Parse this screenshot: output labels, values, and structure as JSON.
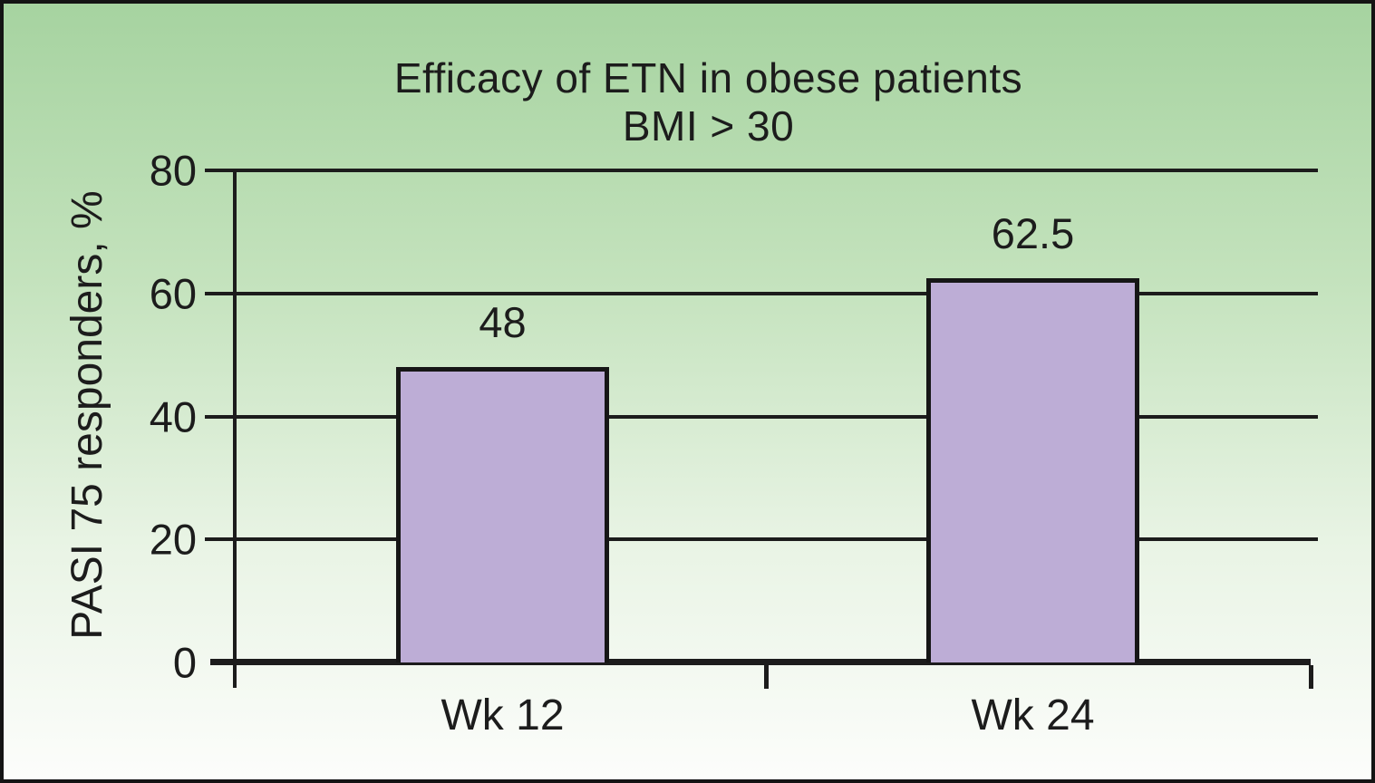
{
  "chart_data": {
    "type": "bar",
    "title": "Efficacy of ETN in obese patients",
    "subtitle": "BMI > 30",
    "ylabel": "PASI 75 responders, %",
    "xlabel": "",
    "categories": [
      "Wk 12",
      "Wk 24"
    ],
    "values": [
      48,
      62.5
    ],
    "value_labels": [
      "48",
      "62.5"
    ],
    "yticks": [
      0,
      20,
      40,
      60,
      80
    ],
    "ylim": [
      0,
      80
    ],
    "grid": "horizontal",
    "legend": "none",
    "colors": {
      "bar_fill": "#bdadd6",
      "bar_border": "#161616",
      "line": "#1c1c1c",
      "text": "#1c1c1c",
      "background_top": "#a6d3a0",
      "background_bottom": "#fcfdfb"
    }
  }
}
